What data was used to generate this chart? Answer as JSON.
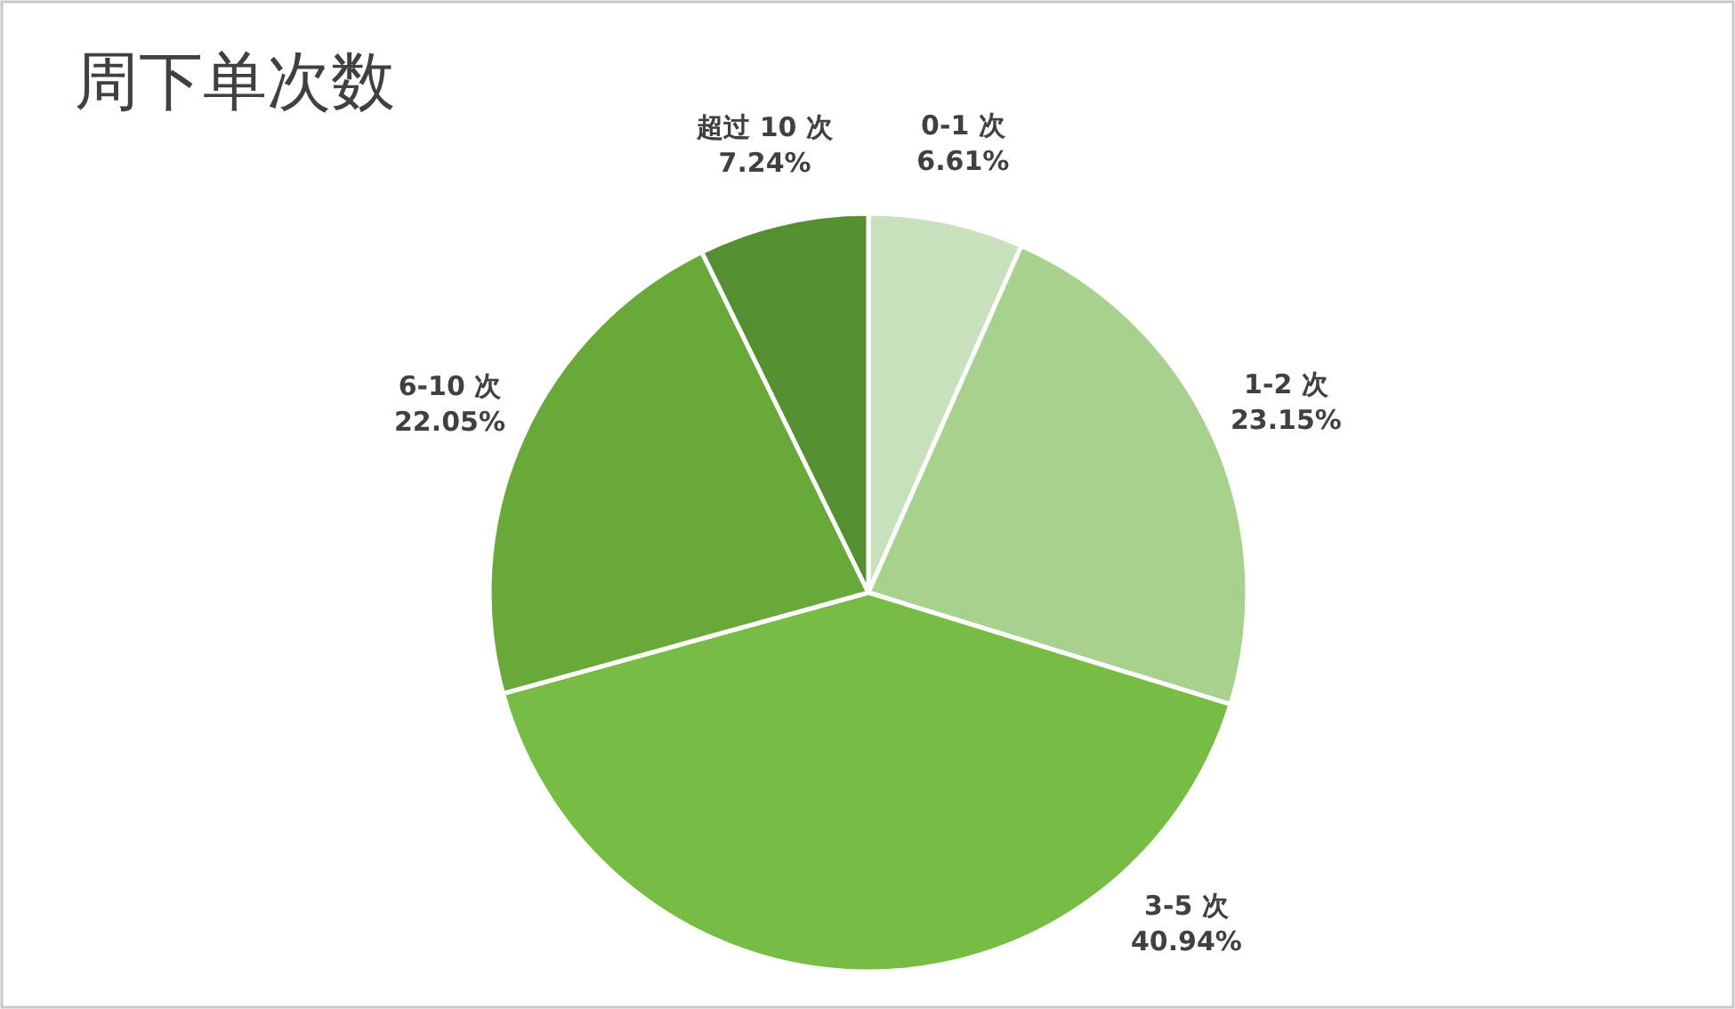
{
  "chart_data": {
    "type": "pie",
    "title": "周下单次数",
    "categories": [
      "0-1 次",
      "1-2 次",
      "3-5 次",
      "6-10 次",
      "超过 10 次"
    ],
    "values": [
      6.61,
      23.15,
      40.94,
      22.05,
      7.24
    ],
    "colors": [
      "#c9e0bd",
      "#a9d18e",
      "#77bc44",
      "#69a93a",
      "#548f31"
    ],
    "value_labels": [
      "6.61%",
      "23.15%",
      "40.94%",
      "22.05%",
      "7.24%"
    ]
  }
}
